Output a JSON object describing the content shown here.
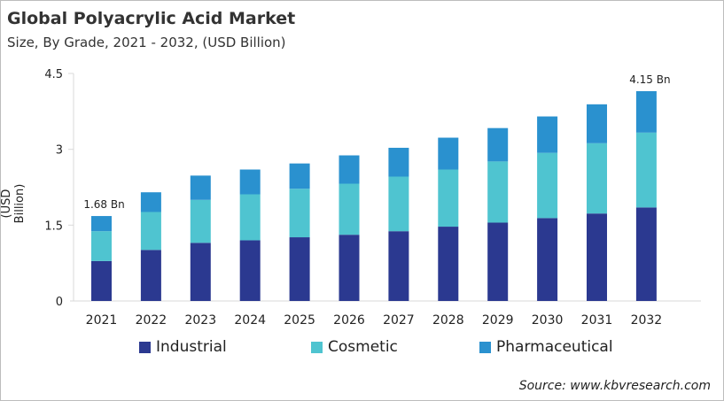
{
  "chart_data": {
    "type": "bar",
    "stacked": true,
    "title": "Global Polyacrylic Acid Market",
    "subtitle": "Size, By Grade, 2021 - 2032, (USD Billion)",
    "xlabel": "",
    "ylabel": "(USD Billion)",
    "ylim": [
      0,
      4.5
    ],
    "yticks": [
      "0",
      "1.5",
      "3",
      "4.5"
    ],
    "grid": true,
    "legend_position": "bottom",
    "categories": [
      "2021",
      "2022",
      "2023",
      "2024",
      "2025",
      "2026",
      "2027",
      "2028",
      "2029",
      "2030",
      "2031",
      "2032"
    ],
    "series": [
      {
        "name": "Industrial",
        "color": "#2b3990",
        "values": [
          0.79,
          1.01,
          1.15,
          1.2,
          1.26,
          1.31,
          1.38,
          1.47,
          1.55,
          1.64,
          1.73,
          1.85
        ]
      },
      {
        "name": "Cosmetic",
        "color": "#4fc4d0",
        "values": [
          0.59,
          0.75,
          0.85,
          0.91,
          0.96,
          1.01,
          1.08,
          1.13,
          1.21,
          1.29,
          1.39,
          1.48
        ]
      },
      {
        "name": "Pharmaceutical",
        "color": "#2a91cf",
        "values": [
          0.3,
          0.39,
          0.48,
          0.49,
          0.5,
          0.56,
          0.57,
          0.63,
          0.66,
          0.72,
          0.77,
          0.82
        ]
      }
    ],
    "annotations": [
      {
        "category": "2021",
        "text": "1.68 Bn"
      },
      {
        "category": "2032",
        "text": "4.15 Bn"
      }
    ]
  },
  "source": "Source: www.kbvresearch.com"
}
